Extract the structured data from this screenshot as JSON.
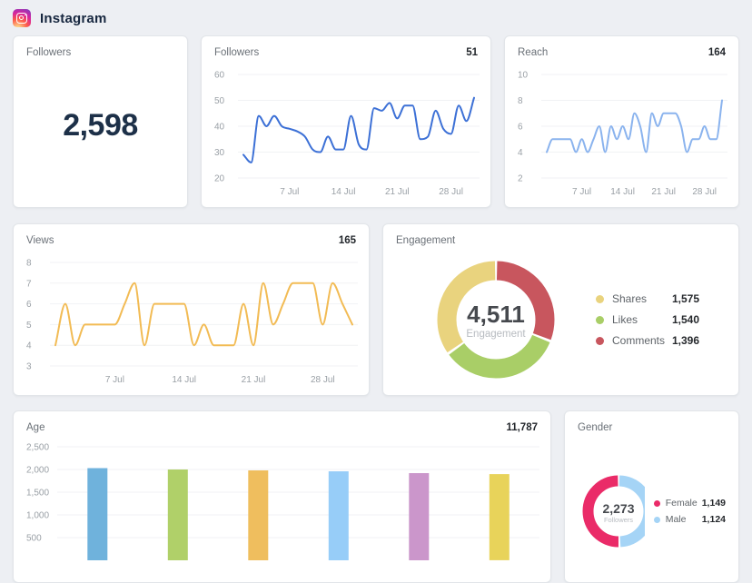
{
  "header": {
    "title": "Instagram"
  },
  "kpi": {
    "title": "Followers",
    "value": "2,598"
  },
  "chart_data": [
    {
      "id": "followers_trend",
      "type": "line",
      "title": "Followers",
      "total_label": "51",
      "color": "#3c70d6",
      "ylim": [
        20,
        60
      ],
      "yticks": [
        60,
        50,
        40,
        30,
        20
      ],
      "xticks": [
        "7 Jul",
        "14 Jul",
        "21 Jul",
        "28 Jul"
      ],
      "xtick_idx": [
        6,
        13,
        20,
        27
      ],
      "x_desc": "daily, 1-31 July",
      "values": [
        29,
        26,
        44,
        40,
        44,
        40,
        39,
        38,
        36,
        31,
        30,
        36,
        31,
        31,
        44,
        33,
        31,
        47,
        46,
        49,
        43,
        48,
        48,
        35,
        36,
        46,
        39,
        37,
        48,
        42,
        51
      ]
    },
    {
      "id": "reach_trend",
      "type": "line",
      "title": "Reach",
      "total_label": "164",
      "color": "#8ab3ee",
      "ylim": [
        2,
        10
      ],
      "yticks": [
        10,
        8,
        6,
        4,
        2
      ],
      "xticks": [
        "7 Jul",
        "14 Jul",
        "21 Jul",
        "28 Jul"
      ],
      "xtick_idx": [
        6,
        13,
        20,
        27
      ],
      "x_desc": "daily, 1-31 July",
      "values": [
        4,
        5,
        5,
        5,
        5,
        4,
        5,
        4,
        5,
        6,
        4,
        6,
        5,
        6,
        5,
        7,
        6,
        4,
        7,
        6,
        7,
        7,
        7,
        6,
        4,
        5,
        5,
        6,
        5,
        5,
        8
      ]
    },
    {
      "id": "views_trend",
      "type": "line",
      "title": "Views",
      "total_label": "165",
      "color": "#f2bb54",
      "ylim": [
        3,
        8
      ],
      "yticks": [
        8,
        7,
        6,
        5,
        4,
        3
      ],
      "xticks": [
        "7 Jul",
        "14 Jul",
        "21 Jul",
        "28 Jul"
      ],
      "xtick_idx": [
        6,
        13,
        20,
        27
      ],
      "x_desc": "daily, 1-31 July",
      "values": [
        4,
        6,
        4,
        5,
        5,
        5,
        5,
        6,
        7,
        4,
        6,
        6,
        6,
        6,
        4,
        5,
        4,
        4,
        4,
        6,
        4,
        7,
        5,
        6,
        7,
        7,
        7,
        5,
        7,
        6,
        5
      ]
    },
    {
      "id": "engagement_donut",
      "type": "pie",
      "title": "Engagement",
      "center": {
        "value": "4,511",
        "label": "Engagement"
      },
      "segments": [
        {
          "label": "Shares",
          "value": 1575,
          "display": "1,575",
          "color": "#e9d37e"
        },
        {
          "label": "Likes",
          "value": 1540,
          "display": "1,540",
          "color": "#a9ce67"
        },
        {
          "label": "Comments",
          "value": 1396,
          "display": "1,396",
          "color": "#c8565e"
        }
      ]
    },
    {
      "id": "age_bars",
      "type": "bar",
      "title": "Age",
      "total_label": "11,787",
      "ylim": [
        0,
        2500
      ],
      "yticks": [
        {
          "label": "2,500",
          "v": 2500
        },
        {
          "label": "2,000",
          "v": 2000
        },
        {
          "label": "1,500",
          "v": 1500
        },
        {
          "label": "1,000",
          "v": 1000
        },
        {
          "label": "500",
          "v": 500
        }
      ],
      "values": [
        2030,
        2000,
        1980,
        1960,
        1920,
        1897
      ],
      "bar_colors": [
        "#6fb2dc",
        "#b0d069",
        "#efbe5e",
        "#97cdf8",
        "#cb96cb",
        "#e8d35a"
      ]
    },
    {
      "id": "gender_donut",
      "type": "pie",
      "title": "Gender",
      "center": {
        "value": "2,273",
        "label": "Followers"
      },
      "segments": [
        {
          "label": "Female",
          "value": 1149,
          "display": "1,149",
          "color": "#ea2b68"
        },
        {
          "label": "Male",
          "value": 1124,
          "display": "1,124",
          "color": "#a5d4f6"
        }
      ]
    }
  ]
}
